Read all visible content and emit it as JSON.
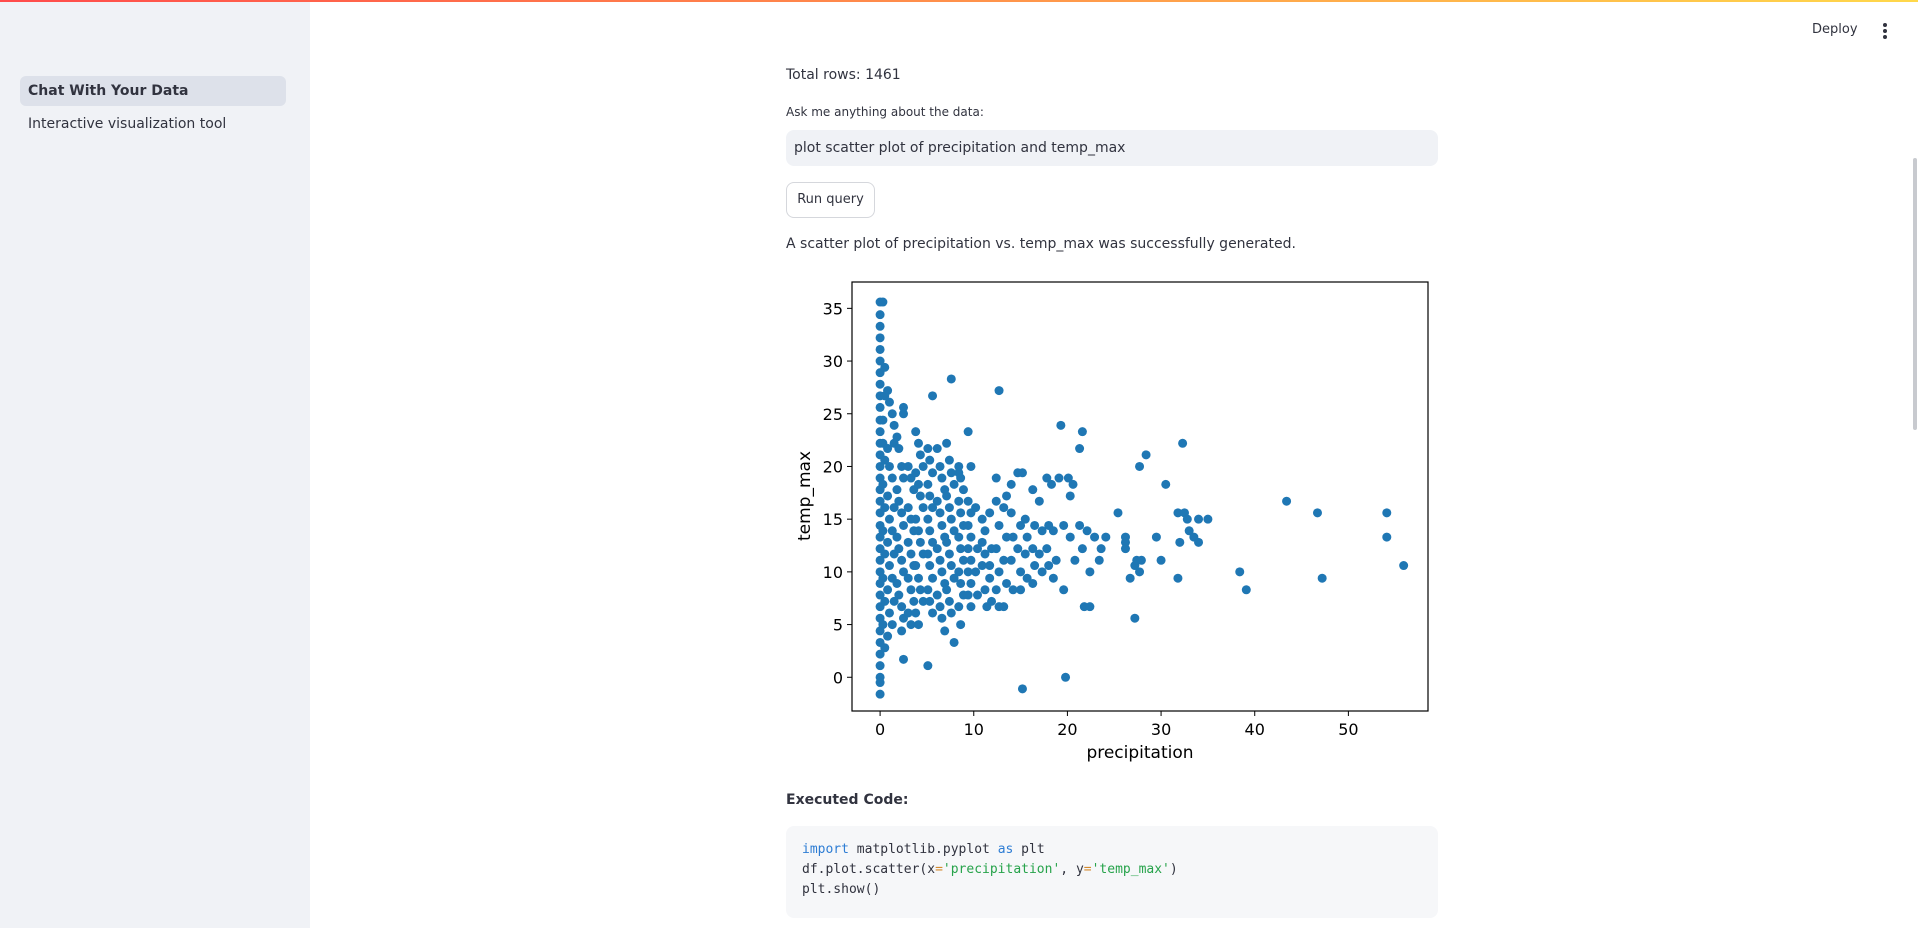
{
  "app": {
    "deploy_label": "Deploy",
    "menu_icon": "kebab-menu-icon"
  },
  "sidebar": {
    "items": [
      {
        "label": "Chat With Your Data",
        "active": true
      },
      {
        "label": "Interactive visualization tool",
        "active": false
      }
    ]
  },
  "main": {
    "total_rows": "Total rows: 1461",
    "ask_label": "Ask me anything about the data:",
    "query_value": "plot scatter plot of precipitation and temp_max",
    "run_label": "Run query",
    "result_text": "A scatter plot of precipitation vs. temp_max was successfully generated.",
    "executed_label": "Executed Code:",
    "code": {
      "line1": {
        "kw1": "import",
        "mod": " matplotlib.pyplot ",
        "kw2": "as",
        "alias": " plt"
      },
      "line2": {
        "a": "df.plot.scatter(x",
        "eq1": "=",
        "s1": "'precipitation'",
        "b": ", y",
        "eq2": "=",
        "s2": "'temp_max'",
        "c": ")"
      },
      "line3": "plt.show()"
    }
  },
  "chart_data": {
    "type": "scatter",
    "xlabel": "precipitation",
    "ylabel": "temp_max",
    "xlim": [
      -3,
      58.5
    ],
    "ylim": [
      -3.2,
      37.5
    ],
    "xticks": [
      0,
      10,
      20,
      30,
      40,
      50
    ],
    "yticks": [
      0,
      5,
      10,
      15,
      20,
      25,
      30,
      35
    ],
    "color": "#1f77b4",
    "points": [
      [
        0,
        35.6
      ],
      [
        0,
        34.4
      ],
      [
        0,
        33.3
      ],
      [
        0,
        32.2
      ],
      [
        0,
        31.1
      ],
      [
        0,
        30.0
      ],
      [
        0,
        28.9
      ],
      [
        0,
        27.8
      ],
      [
        0,
        26.7
      ],
      [
        0,
        25.6
      ],
      [
        0,
        24.4
      ],
      [
        0,
        23.3
      ],
      [
        0,
        22.2
      ],
      [
        0,
        21.1
      ],
      [
        0,
        20.0
      ],
      [
        0,
        18.9
      ],
      [
        0,
        17.8
      ],
      [
        0,
        16.7
      ],
      [
        0,
        15.6
      ],
      [
        0,
        14.4
      ],
      [
        0,
        13.3
      ],
      [
        0,
        12.2
      ],
      [
        0,
        11.1
      ],
      [
        0,
        10.0
      ],
      [
        0,
        8.9
      ],
      [
        0,
        7.8
      ],
      [
        0,
        6.7
      ],
      [
        0,
        5.6
      ],
      [
        0,
        4.4
      ],
      [
        0,
        3.3
      ],
      [
        0,
        2.2
      ],
      [
        0,
        1.1
      ],
      [
        0,
        0.0
      ],
      [
        0,
        -0.5
      ],
      [
        0,
        -1.6
      ],
      [
        0.3,
        35.6
      ],
      [
        0.5,
        29.4
      ],
      [
        0.5,
        26.7
      ],
      [
        0.3,
        24.4
      ],
      [
        0.3,
        22.2
      ],
      [
        0.5,
        20.6
      ],
      [
        0.3,
        18.3
      ],
      [
        0.5,
        16.1
      ],
      [
        0.3,
        13.9
      ],
      [
        0.5,
        11.7
      ],
      [
        0.3,
        9.4
      ],
      [
        0.5,
        7.2
      ],
      [
        0.3,
        5.0
      ],
      [
        0.5,
        2.8
      ],
      [
        0.8,
        27.2
      ],
      [
        1.0,
        26.1
      ],
      [
        1.3,
        25.0
      ],
      [
        1.5,
        23.9
      ],
      [
        1.5,
        22.2
      ],
      [
        0.8,
        21.7
      ],
      [
        1.0,
        20.0
      ],
      [
        1.3,
        18.9
      ],
      [
        0.8,
        17.2
      ],
      [
        1.5,
        16.1
      ],
      [
        1.0,
        15.0
      ],
      [
        1.3,
        13.9
      ],
      [
        0.8,
        12.8
      ],
      [
        1.5,
        11.7
      ],
      [
        1.0,
        10.6
      ],
      [
        1.3,
        9.4
      ],
      [
        0.8,
        8.3
      ],
      [
        1.5,
        7.2
      ],
      [
        1.0,
        6.1
      ],
      [
        1.3,
        5.0
      ],
      [
        0.8,
        3.9
      ],
      [
        1.8,
        22.8
      ],
      [
        2.0,
        21.7
      ],
      [
        2.3,
        20.0
      ],
      [
        2.5,
        18.9
      ],
      [
        1.8,
        17.8
      ],
      [
        2.0,
        16.7
      ],
      [
        2.3,
        15.6
      ],
      [
        2.5,
        14.4
      ],
      [
        1.8,
        13.3
      ],
      [
        2.0,
        12.2
      ],
      [
        2.3,
        11.1
      ],
      [
        2.5,
        10.0
      ],
      [
        1.8,
        8.9
      ],
      [
        2.0,
        7.8
      ],
      [
        2.3,
        6.7
      ],
      [
        2.5,
        5.6
      ],
      [
        2.3,
        4.4
      ],
      [
        2.5,
        25.6
      ],
      [
        2.5,
        25.0
      ],
      [
        3.0,
        20.0
      ],
      [
        3.3,
        18.9
      ],
      [
        3.6,
        17.8
      ],
      [
        3.0,
        16.1
      ],
      [
        3.3,
        15.0
      ],
      [
        3.6,
        13.9
      ],
      [
        3.0,
        12.8
      ],
      [
        3.3,
        11.7
      ],
      [
        3.6,
        10.6
      ],
      [
        3.0,
        9.4
      ],
      [
        3.3,
        8.3
      ],
      [
        3.6,
        7.2
      ],
      [
        3.0,
        6.1
      ],
      [
        3.3,
        5.0
      ],
      [
        2.5,
        1.7
      ],
      [
        3.8,
        23.3
      ],
      [
        4.1,
        22.2
      ],
      [
        4.3,
        21.1
      ],
      [
        4.6,
        20.0
      ],
      [
        3.8,
        19.4
      ],
      [
        4.1,
        18.3
      ],
      [
        4.3,
        17.2
      ],
      [
        4.6,
        16.1
      ],
      [
        3.8,
        15.0
      ],
      [
        4.1,
        13.9
      ],
      [
        4.3,
        12.8
      ],
      [
        4.6,
        11.7
      ],
      [
        3.8,
        10.6
      ],
      [
        4.1,
        9.4
      ],
      [
        4.3,
        8.3
      ],
      [
        4.6,
        7.2
      ],
      [
        3.8,
        6.1
      ],
      [
        4.1,
        5.0
      ],
      [
        5.1,
        21.7
      ],
      [
        5.3,
        20.6
      ],
      [
        5.6,
        19.4
      ],
      [
        5.1,
        18.3
      ],
      [
        5.3,
        17.2
      ],
      [
        5.6,
        16.1
      ],
      [
        5.1,
        15.0
      ],
      [
        5.3,
        13.9
      ],
      [
        5.6,
        12.8
      ],
      [
        5.1,
        11.7
      ],
      [
        5.3,
        10.6
      ],
      [
        5.6,
        9.4
      ],
      [
        5.1,
        8.3
      ],
      [
        5.3,
        7.2
      ],
      [
        5.6,
        6.1
      ],
      [
        5.1,
        1.1
      ],
      [
        5.6,
        26.7
      ],
      [
        6.1,
        21.7
      ],
      [
        6.4,
        20.0
      ],
      [
        6.6,
        18.9
      ],
      [
        6.9,
        17.8
      ],
      [
        6.1,
        16.7
      ],
      [
        6.4,
        15.6
      ],
      [
        6.6,
        14.4
      ],
      [
        6.9,
        13.3
      ],
      [
        6.1,
        12.2
      ],
      [
        6.4,
        11.1
      ],
      [
        6.6,
        10.0
      ],
      [
        6.9,
        8.9
      ],
      [
        6.1,
        7.8
      ],
      [
        6.4,
        6.7
      ],
      [
        6.6,
        5.6
      ],
      [
        6.9,
        4.4
      ],
      [
        7.1,
        22.2
      ],
      [
        7.4,
        20.6
      ],
      [
        7.6,
        19.4
      ],
      [
        7.9,
        18.3
      ],
      [
        7.1,
        17.2
      ],
      [
        7.4,
        16.1
      ],
      [
        7.6,
        15.0
      ],
      [
        7.9,
        13.9
      ],
      [
        7.1,
        12.8
      ],
      [
        7.4,
        11.7
      ],
      [
        7.6,
        10.6
      ],
      [
        7.9,
        9.4
      ],
      [
        7.1,
        8.3
      ],
      [
        7.4,
        7.2
      ],
      [
        7.6,
        6.1
      ],
      [
        7.9,
        3.3
      ],
      [
        7.6,
        28.3
      ],
      [
        8.4,
        20.0
      ],
      [
        8.6,
        18.9
      ],
      [
        8.9,
        17.8
      ],
      [
        8.4,
        16.7
      ],
      [
        8.6,
        15.6
      ],
      [
        8.9,
        14.4
      ],
      [
        8.4,
        13.3
      ],
      [
        8.6,
        12.2
      ],
      [
        8.9,
        11.1
      ],
      [
        8.4,
        10.0
      ],
      [
        8.6,
        8.9
      ],
      [
        8.9,
        7.8
      ],
      [
        8.4,
        6.7
      ],
      [
        8.6,
        5.0
      ],
      [
        8.4,
        19.4
      ],
      [
        9.4,
        23.3
      ],
      [
        9.7,
        20.0
      ],
      [
        9.4,
        16.7
      ],
      [
        9.7,
        15.6
      ],
      [
        9.4,
        14.4
      ],
      [
        9.7,
        13.3
      ],
      [
        9.4,
        12.2
      ],
      [
        9.7,
        11.1
      ],
      [
        9.4,
        10.0
      ],
      [
        9.7,
        8.9
      ],
      [
        9.4,
        7.8
      ],
      [
        9.7,
        6.7
      ],
      [
        10.2,
        16.1
      ],
      [
        10.4,
        12.2
      ],
      [
        10.2,
        10.0
      ],
      [
        10.4,
        7.8
      ],
      [
        10.9,
        15.0
      ],
      [
        11.2,
        13.9
      ],
      [
        10.9,
        12.8
      ],
      [
        11.2,
        11.7
      ],
      [
        10.9,
        10.6
      ],
      [
        11.2,
        8.3
      ],
      [
        11.4,
        6.7
      ],
      [
        11.7,
        15.6
      ],
      [
        11.9,
        12.2
      ],
      [
        11.7,
        10.6
      ],
      [
        11.9,
        7.2
      ],
      [
        11.7,
        9.4
      ],
      [
        12.4,
        16.7
      ],
      [
        12.7,
        14.4
      ],
      [
        12.4,
        12.2
      ],
      [
        12.7,
        10.0
      ],
      [
        12.4,
        8.3
      ],
      [
        12.7,
        6.7
      ],
      [
        12.7,
        27.2
      ],
      [
        12.4,
        18.9
      ],
      [
        13.2,
        16.1
      ],
      [
        13.5,
        13.3
      ],
      [
        13.2,
        11.1
      ],
      [
        13.5,
        8.9
      ],
      [
        13.2,
        6.7
      ],
      [
        13.5,
        17.2
      ],
      [
        14.0,
        15.6
      ],
      [
        14.2,
        13.3
      ],
      [
        14.0,
        11.1
      ],
      [
        14.2,
        8.3
      ],
      [
        14.0,
        18.3
      ],
      [
        14.7,
        19.4
      ],
      [
        15.0,
        14.4
      ],
      [
        14.7,
        12.2
      ],
      [
        15.0,
        10.0
      ],
      [
        15.0,
        8.3
      ],
      [
        15.2,
        19.4
      ],
      [
        15.2,
        -1.1
      ],
      [
        15.5,
        15.0
      ],
      [
        15.7,
        13.3
      ],
      [
        15.5,
        11.7
      ],
      [
        15.7,
        9.4
      ],
      [
        16.3,
        17.8
      ],
      [
        16.5,
        14.4
      ],
      [
        16.3,
        12.2
      ],
      [
        16.5,
        10.6
      ],
      [
        16.3,
        8.9
      ],
      [
        17.0,
        16.7
      ],
      [
        17.3,
        13.9
      ],
      [
        17.0,
        11.7
      ],
      [
        17.3,
        10.0
      ],
      [
        17.8,
        18.9
      ],
      [
        18.0,
        14.4
      ],
      [
        17.8,
        12.2
      ],
      [
        18.0,
        10.6
      ],
      [
        18.3,
        18.3
      ],
      [
        18.5,
        13.9
      ],
      [
        18.8,
        11.1
      ],
      [
        18.5,
        9.4
      ],
      [
        19.1,
        18.9
      ],
      [
        19.3,
        23.9
      ],
      [
        19.6,
        14.4
      ],
      [
        19.6,
        8.3
      ],
      [
        19.8,
        0.0
      ],
      [
        20.1,
        18.9
      ],
      [
        20.3,
        17.2
      ],
      [
        20.3,
        13.3
      ],
      [
        20.6,
        18.3
      ],
      [
        20.8,
        11.1
      ],
      [
        21.3,
        21.7
      ],
      [
        21.6,
        23.3
      ],
      [
        21.3,
        14.4
      ],
      [
        21.6,
        12.2
      ],
      [
        21.8,
        6.7
      ],
      [
        22.1,
        13.9
      ],
      [
        22.4,
        10.0
      ],
      [
        22.4,
        6.7
      ],
      [
        22.9,
        13.3
      ],
      [
        23.4,
        11.1
      ],
      [
        23.6,
        12.2
      ],
      [
        24.1,
        13.3
      ],
      [
        25.4,
        15.6
      ],
      [
        26.2,
        13.3
      ],
      [
        26.2,
        12.8
      ],
      [
        26.2,
        12.2
      ],
      [
        26.7,
        9.4
      ],
      [
        27.2,
        10.6
      ],
      [
        27.2,
        5.6
      ],
      [
        27.4,
        11.1
      ],
      [
        27.7,
        10.0
      ],
      [
        27.7,
        20.0
      ],
      [
        27.9,
        11.1
      ],
      [
        28.4,
        21.1
      ],
      [
        29.5,
        13.3
      ],
      [
        30.0,
        11.1
      ],
      [
        30.5,
        18.3
      ],
      [
        31.8,
        15.6
      ],
      [
        31.8,
        9.4
      ],
      [
        32.0,
        12.8
      ],
      [
        32.3,
        22.2
      ],
      [
        32.5,
        15.6
      ],
      [
        32.8,
        15.0
      ],
      [
        33.0,
        13.9
      ],
      [
        33.5,
        13.3
      ],
      [
        34.0,
        15.0
      ],
      [
        34.0,
        12.8
      ],
      [
        35.0,
        15.0
      ],
      [
        38.4,
        10.0
      ],
      [
        39.1,
        8.3
      ],
      [
        43.4,
        16.7
      ],
      [
        46.7,
        15.6
      ],
      [
        47.2,
        9.4
      ],
      [
        54.1,
        15.6
      ],
      [
        54.1,
        13.3
      ],
      [
        55.9,
        10.6
      ]
    ]
  }
}
